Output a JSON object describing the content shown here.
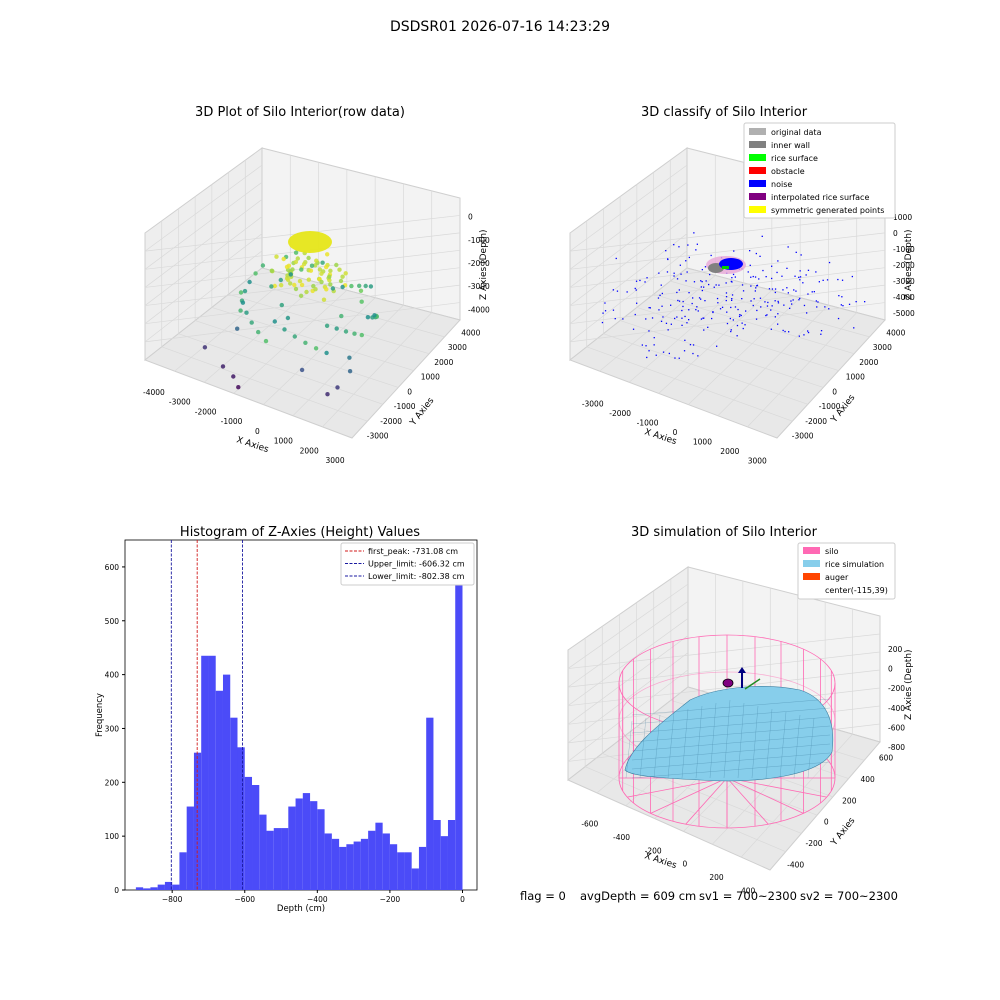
{
  "figure": {
    "suptitle": "DSDSR01 2026-07-16 14:23:29",
    "status_line": {
      "flag": "flag = 0",
      "avg_depth": "avgDepth = 609 cm",
      "sv1": "sv1 = 700~2300",
      "sv2": "sv2 = 700~2300"
    }
  },
  "colors": {
    "hist_bar": "#4b4bf8",
    "first_peak": "#d11a1a",
    "limits": "#1a1aa0",
    "silo": "#ff69b4",
    "rice": "#87ceeb",
    "auger": "#ff4500",
    "noise": "#0000ff",
    "inner_wall": "#808080",
    "rice_surface": "#00ff00",
    "obstacle": "#ff0000",
    "interpolated": "#800080",
    "symmetric": "#ffff00",
    "original": "#b0b0b0"
  },
  "chart_data": [
    {
      "type": "scatter",
      "title": "3D Plot of Silo Interior(row data)",
      "xlabel": "X Axies",
      "ylabel": "Y Axies",
      "zlabel": "Z Axies (Depth)",
      "x_ticks": [
        "-4000",
        "-3000",
        "-2000",
        "-1000",
        "0",
        "1000",
        "2000",
        "3000"
      ],
      "y_ticks": [
        "-3000",
        "-2000",
        "-1000",
        "0",
        "1000",
        "2000",
        "3000",
        "4000"
      ],
      "z_ticks": [
        "0",
        "-1000",
        "-2000",
        "-3000",
        "-4000"
      ],
      "grid": true,
      "colormap": "viridis",
      "points": [
        {
          "x": 0,
          "y": 0,
          "z": -1050
        },
        {
          "x": 300,
          "y": 200,
          "z": -1000
        },
        {
          "x": -300,
          "y": 300,
          "z": -1000
        },
        {
          "x": 500,
          "y": -200,
          "z": -1100
        },
        {
          "x": -500,
          "y": -300,
          "z": -1150
        },
        {
          "x": 800,
          "y": 600,
          "z": -1000
        },
        {
          "x": -1500,
          "y": 1800,
          "z": -1800
        },
        {
          "x": -1700,
          "y": 1500,
          "z": -1900
        },
        {
          "x": 1600,
          "y": 600,
          "z": -1500
        },
        {
          "x": 1800,
          "y": 300,
          "z": -1700
        },
        {
          "x": 1500,
          "y": -500,
          "z": -2000
        },
        {
          "x": 1200,
          "y": -900,
          "z": -2300
        },
        {
          "x": -600,
          "y": -700,
          "z": -2300
        },
        {
          "x": -200,
          "y": -1000,
          "z": -2500
        },
        {
          "x": 2200,
          "y": -1200,
          "z": -3000
        },
        {
          "x": 2400,
          "y": -1500,
          "z": -3300
        },
        {
          "x": -1800,
          "y": -1500,
          "z": -3300
        },
        {
          "x": 900,
          "y": -2000,
          "z": -3600
        },
        {
          "x": -2600,
          "y": -2200,
          "z": -4000
        },
        {
          "x": -1700,
          "y": -2600,
          "z": -4200
        },
        {
          "x": -1200,
          "y": -2800,
          "z": -4300
        },
        {
          "x": 2100,
          "y": -1800,
          "z": -3900
        },
        {
          "x": 1900,
          "y": -2100,
          "z": -4100
        },
        {
          "x": -900,
          "y": -3000,
          "z": -4500
        }
      ]
    },
    {
      "type": "scatter",
      "title": "3D classify of Silo Interior",
      "xlabel": "X Axies",
      "ylabel": "Y Axies",
      "zlabel": "Z Axies (Depth)",
      "x_ticks": [
        "-3000",
        "-2000",
        "-1000",
        "0",
        "1000",
        "2000",
        "3000"
      ],
      "y_ticks": [
        "-3000",
        "-2000",
        "-1000",
        "0",
        "1000",
        "2000",
        "3000",
        "4000"
      ],
      "z_ticks": [
        "1000",
        "0",
        "-1000",
        "-2000",
        "-3000",
        "-4000",
        "-5000"
      ],
      "grid": true,
      "legend": {
        "location": "top-right",
        "entries": [
          {
            "label": "original data",
            "color": "#b0b0b0"
          },
          {
            "label": "inner wall",
            "color": "#808080"
          },
          {
            "label": "rice surface",
            "color": "#00ff00"
          },
          {
            "label": "obstacle",
            "color": "#ff0000"
          },
          {
            "label": "noise",
            "color": "#0000ff"
          },
          {
            "label": "interpolated rice surface",
            "color": "#800080"
          },
          {
            "label": "symmetric generated points",
            "color": "#ffff00"
          }
        ]
      }
    },
    {
      "type": "bar",
      "title": "Histogram of Z-Axies (Height) Values",
      "xlabel": "Depth (cm)",
      "ylabel": "Frequency",
      "xlim": [
        -930,
        40
      ],
      "ylim": [
        0,
        650
      ],
      "bin_width": 20,
      "bin_starts": [
        -900,
        -880,
        -860,
        -840,
        -820,
        -800,
        -780,
        -760,
        -740,
        -720,
        -700,
        -680,
        -660,
        -640,
        -620,
        -600,
        -580,
        -560,
        -540,
        -520,
        -500,
        -480,
        -460,
        -440,
        -420,
        -400,
        -380,
        -360,
        -340,
        -320,
        -300,
        -280,
        -260,
        -240,
        -220,
        -200,
        -180,
        -160,
        -140,
        -120,
        -100,
        -80,
        -60,
        -40,
        -20
      ],
      "values": [
        5,
        3,
        5,
        10,
        15,
        10,
        70,
        155,
        255,
        435,
        435,
        370,
        400,
        320,
        265,
        210,
        195,
        140,
        110,
        115,
        115,
        155,
        170,
        180,
        165,
        150,
        105,
        95,
        80,
        85,
        90,
        95,
        110,
        125,
        105,
        85,
        70,
        70,
        40,
        80,
        320,
        130,
        100,
        130,
        615
      ],
      "x_ticks": [
        "−800",
        "−600",
        "−400",
        "−200",
        "0"
      ],
      "y_ticks": [
        "0",
        "100",
        "200",
        "300",
        "400",
        "500",
        "600"
      ],
      "legend": {
        "location": "top-right",
        "entries": [
          {
            "label": "first_peak: -731.08 cm",
            "value": -731.08
          },
          {
            "label": "Upper_limit: -606.32 cm",
            "value": -606.32
          },
          {
            "label": "Lower_limit: -802.38 cm",
            "value": -802.38
          }
        ]
      }
    },
    {
      "type": "area",
      "title": "3D simulation of Silo Interior",
      "xlabel": "X Axies",
      "ylabel": "Y Axies",
      "zlabel": "Z Axies (Depth)",
      "x_ticks": [
        "-600",
        "-400",
        "-200",
        "0",
        "200",
        "400"
      ],
      "y_ticks": [
        "-400",
        "-200",
        "0",
        "200",
        "400",
        "600"
      ],
      "z_ticks": [
        "200",
        "0",
        "-200",
        "-400",
        "-600",
        "-800"
      ],
      "grid": true,
      "legend": {
        "location": "top-right",
        "entries": [
          {
            "label": "silo",
            "color": "#ff69b4"
          },
          {
            "label": "rice simulation",
            "color": "#87ceeb"
          },
          {
            "label": "auger",
            "color": "#ff4500"
          },
          {
            "label": "center(-115,39)",
            "color": ""
          }
        ]
      }
    }
  ]
}
